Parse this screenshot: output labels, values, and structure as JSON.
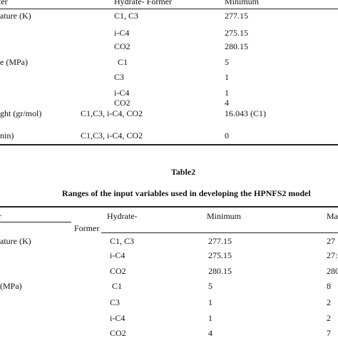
{
  "table1": {
    "headers": {
      "param": "ter",
      "former": "Hydrate- Former",
      "min": "Minimum"
    },
    "rows": [
      {
        "param": "ature (K)",
        "former": "C1, C3",
        "min": "277.15"
      },
      {
        "param": "",
        "former": "i-C4",
        "min": "275.15"
      },
      {
        "param": "",
        "former": "CO2",
        "min": "280.15"
      },
      {
        "param": "e (MPa)",
        "former": "C1",
        "min": "5"
      },
      {
        "param": "",
        "former": "C3",
        "min": "1"
      },
      {
        "param": "",
        "former": "i-C4",
        "min": "1"
      },
      {
        "param": "",
        "former": "CO2",
        "min": "4"
      },
      {
        "param": "ght (gr/mol)",
        "former": "C1,C3, i-C4, CO2",
        "min": "16.043 (C1)"
      },
      {
        "param": "nin)",
        "former": "C1,C3, i-C4, CO2",
        "min": "0"
      }
    ]
  },
  "table2": {
    "label": "Table2",
    "caption": "Ranges of the input variables used in developing the HPNFS2 model",
    "headers": {
      "param": "r",
      "former_l1": "Hydrate-",
      "former_l2": "Former",
      "min": "Minimum",
      "max": "Ma"
    },
    "rows": [
      {
        "param": "ature (K)",
        "former": "C1, C3",
        "min": "277.15",
        "max": "27"
      },
      {
        "param": "",
        "former": "i-C4",
        "min": "275.15",
        "max": "27:"
      },
      {
        "param": "",
        "former": "CO2",
        "min": "280.15",
        "max": "280"
      },
      {
        "param": "(MPa)",
        "former": "C1",
        "min": "5",
        "max": "8"
      },
      {
        "param": "",
        "former": "C3",
        "min": "1",
        "max": "2"
      },
      {
        "param": "",
        "former": "i-C4",
        "min": "1",
        "max": "2"
      },
      {
        "param": "",
        "former": "CO2",
        "min": "4",
        "max": "7"
      }
    ]
  }
}
